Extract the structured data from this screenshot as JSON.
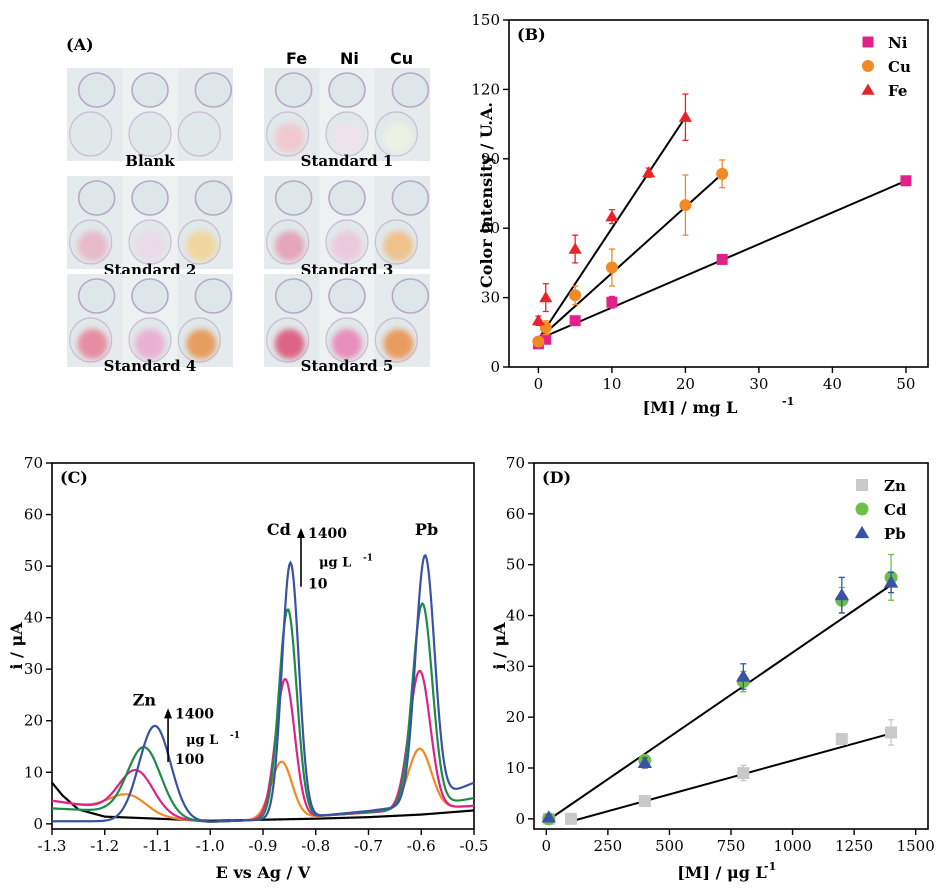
{
  "colors": {
    "fe": "#e8242b",
    "ni": "#e0218a",
    "cu": "#f08a24",
    "zn": "#c9c9c9",
    "cd": "#6cc04a",
    "pb": "#3a52a3",
    "curve_black": "#000000",
    "curve_orange": "#f08a24",
    "curve_magenta": "#e0218a",
    "curve_green": "#1e8a4a",
    "curve_blue": "#3a52a3"
  },
  "panel_a": {
    "label": "(A)",
    "headers": [
      "Fe",
      "Ni",
      "Cu"
    ],
    "photos": [
      {
        "label": "Blank",
        "spot_colors": [
          "#ffffff",
          "#ffffff",
          "#ffffff"
        ]
      },
      {
        "label": "Standard 1",
        "spot_colors": [
          "#f2c7cf",
          "#f0e2ee",
          "#eef2e4"
        ]
      },
      {
        "label": "Standard 2",
        "spot_colors": [
          "#e8b7c8",
          "#eadbe8",
          "#f2d59a"
        ]
      },
      {
        "label": "Standard 3",
        "spot_colors": [
          "#e4a3b8",
          "#ecc8dc",
          "#f0c088"
        ]
      },
      {
        "label": "Standard 4",
        "spot_colors": [
          "#e8889f",
          "#ebaed0",
          "#e69a5a"
        ]
      },
      {
        "label": "Standard 5",
        "spot_colors": [
          "#dc5f80",
          "#e88ab8",
          "#ea9658"
        ]
      }
    ]
  },
  "chart_data": [
    {
      "panel": "(B)",
      "type": "scatter",
      "xlabel": "[M] / mg L",
      "xlabel_sup": "-1",
      "ylabel": "Color intensity / U.A.",
      "xlim": [
        -4,
        53
      ],
      "ylim": [
        0,
        150
      ],
      "xticks": [
        0,
        10,
        20,
        30,
        40,
        50
      ],
      "yticks": [
        0,
        30,
        60,
        90,
        120,
        150
      ],
      "legend_position": "top-right",
      "series": [
        {
          "name": "Ni",
          "marker": "square",
          "color": "#e0218a",
          "x": [
            0,
            1,
            5,
            10,
            25,
            50
          ],
          "y": [
            10,
            12,
            20,
            28,
            46.5,
            80.5
          ],
          "err": [
            1,
            1,
            1,
            2.5,
            1,
            1.5
          ],
          "fit": [
            [
              0,
              12
            ],
            [
              50,
              80.5
            ]
          ]
        },
        {
          "name": "Cu",
          "marker": "circle",
          "color": "#f08a24",
          "x": [
            0,
            1,
            5,
            10,
            20,
            25
          ],
          "y": [
            11,
            17,
            31,
            43,
            70,
            83.5
          ],
          "err": [
            2,
            3,
            4,
            8,
            13,
            6
          ],
          "fit": [
            [
              0,
              12
            ],
            [
              25,
              83.5
            ]
          ]
        },
        {
          "name": "Fe",
          "marker": "triangle",
          "color": "#e8242b",
          "x": [
            0,
            1,
            5,
            10,
            15,
            20
          ],
          "y": [
            20,
            30,
            51,
            65,
            84,
            108
          ],
          "err": [
            2,
            6,
            6,
            3,
            2,
            10
          ],
          "fit": [
            [
              0,
              12
            ],
            [
              20,
              108
            ]
          ]
        }
      ]
    },
    {
      "panel": "(C)",
      "type": "line",
      "xlabel": "E vs Ag / V",
      "ylabel": "i / μA",
      "xlim": [
        -1.3,
        -0.5
      ],
      "ylim": [
        -1,
        70
      ],
      "xticks": [
        -1.3,
        -1.2,
        -1.1,
        -1.0,
        -0.9,
        -0.8,
        -0.7,
        -0.6,
        -0.5
      ],
      "xtick_labels": [
        "-1.3",
        "-1.2",
        "-1.1",
        "-1.0",
        "-0.9",
        "-0.8",
        "-0.7",
        "-0.6",
        "-0.5"
      ],
      "yticks": [
        0,
        10,
        20,
        30,
        40,
        50,
        60,
        70
      ],
      "annotations": [
        {
          "text": "Zn",
          "x": -1.125,
          "y": 23
        },
        {
          "text": "Cd",
          "x": -0.87,
          "y": 56
        },
        {
          "text": "Pb",
          "x": -0.59,
          "y": 56
        }
      ],
      "arrows": [
        {
          "x": -1.08,
          "y_from": 12,
          "y_to": 22,
          "top": "1400",
          "unit": "μg L",
          "unit_sup": "-1",
          "bottom": "100"
        },
        {
          "x": -0.828,
          "y_from": 46,
          "y_to": 57,
          "top": "1400",
          "unit": "μg L",
          "unit_sup": "-1",
          "bottom": "10"
        }
      ],
      "curves": [
        {
          "color": "#000000",
          "base": [
            [
              -1.3,
              8
            ],
            [
              -1.28,
              5.5
            ],
            [
              -1.25,
              2.8
            ],
            [
              -1.2,
              1.4
            ],
            [
              -1.1,
              1.0
            ],
            [
              -1.0,
              0.6
            ],
            [
              -0.9,
              0.8
            ],
            [
              -0.8,
              1.0
            ],
            [
              -0.7,
              1.3
            ],
            [
              -0.6,
              1.8
            ],
            [
              -0.5,
              2.6
            ]
          ],
          "peaks": []
        },
        {
          "color": "#f08a24",
          "base": [
            [
              -1.3,
              4.5
            ],
            [
              -1.2,
              3.0
            ],
            [
              -1.1,
              1.2
            ],
            [
              -1.0,
              0.4
            ],
            [
              -0.9,
              0.8
            ],
            [
              -0.8,
              1.5
            ],
            [
              -0.7,
              2.2
            ],
            [
              -0.6,
              2.8
            ],
            [
              -0.5,
              3.5
            ]
          ],
          "peaks": [
            [
              -1.155,
              3.5,
              0.035
            ],
            [
              -0.865,
              11,
              0.02
            ],
            [
              -0.603,
              11.8,
              0.022
            ]
          ]
        },
        {
          "color": "#e0218a",
          "base": [
            [
              -1.3,
              4.5
            ],
            [
              -1.2,
              3.0
            ],
            [
              -1.1,
              1.2
            ],
            [
              -1.0,
              0.4
            ],
            [
              -0.9,
              0.8
            ],
            [
              -0.8,
              1.5
            ],
            [
              -0.7,
              2.2
            ],
            [
              -0.6,
              2.9
            ],
            [
              -0.5,
              3.5
            ]
          ],
          "peaks": [
            [
              -1.14,
              8.5,
              0.033
            ],
            [
              -0.858,
              27,
              0.018
            ],
            [
              -0.603,
              26.8,
              0.02
            ]
          ]
        },
        {
          "color": "#1e8a4a",
          "base": [
            [
              -1.3,
              3.0
            ],
            [
              -1.2,
              2.5
            ],
            [
              -1.1,
              1.0
            ],
            [
              -1.0,
              0.4
            ],
            [
              -0.9,
              0.8
            ],
            [
              -0.8,
              1.5
            ],
            [
              -0.7,
              2.3
            ],
            [
              -0.6,
              3.2
            ],
            [
              -0.5,
              5.0
            ]
          ],
          "peaks": [
            [
              -1.125,
              13.5,
              0.032
            ],
            [
              -0.853,
              40.5,
              0.017
            ],
            [
              -0.598,
              39.5,
              0.019
            ]
          ]
        },
        {
          "color": "#3a52a3",
          "base": [
            [
              -1.3,
              0.5
            ],
            [
              -1.2,
              0.5
            ],
            [
              -1.1,
              0.5
            ],
            [
              -1.0,
              0.4
            ],
            [
              -0.9,
              0.8
            ],
            [
              -0.8,
              1.5
            ],
            [
              -0.7,
              2.5
            ],
            [
              -0.6,
              3.8
            ],
            [
              -0.5,
              8.0
            ]
          ],
          "peaks": [
            [
              -1.105,
              18.5,
              0.03
            ],
            [
              -0.848,
              49.5,
              0.016
            ],
            [
              -0.593,
              48,
              0.018
            ]
          ]
        }
      ]
    },
    {
      "panel": "(D)",
      "type": "scatter",
      "xlabel": "[M] / μg L",
      "xlabel_sup": "-1",
      "ylabel": "i / μA",
      "xlim": [
        -50,
        1550
      ],
      "ylim": [
        -2,
        70
      ],
      "xticks": [
        0,
        250,
        500,
        750,
        1000,
        1250,
        1500
      ],
      "yticks": [
        0,
        10,
        20,
        30,
        40,
        50,
        60,
        70
      ],
      "legend_position": "top-right",
      "series": [
        {
          "name": "Zn",
          "marker": "square",
          "color": "#c9c9c9",
          "x": [
            10,
            100,
            400,
            800,
            1200,
            1400
          ],
          "y": [
            0,
            0,
            3.5,
            9,
            15.7,
            17
          ],
          "err": [
            0.3,
            0.3,
            0.5,
            1.5,
            0.8,
            2.5
          ],
          "fit": [
            [
              100,
              -0.5
            ],
            [
              1400,
              16.8
            ]
          ]
        },
        {
          "name": "Cd",
          "marker": "circle",
          "color": "#6cc04a",
          "x": [
            10,
            400,
            800,
            1200,
            1400
          ],
          "y": [
            0,
            11.5,
            27,
            43,
            47.5
          ],
          "err": [
            0.5,
            1,
            2,
            2.5,
            4.5
          ],
          "fit": [
            [
              0,
              -0.5
            ],
            [
              1400,
              46
            ]
          ]
        },
        {
          "name": "Pb",
          "marker": "triangle",
          "color": "#3a52a3",
          "x": [
            10,
            400,
            800,
            1200,
            1400
          ],
          "y": [
            0.3,
            11,
            28,
            44,
            46.5
          ],
          "err": [
            0.5,
            1,
            2.5,
            3.5,
            2
          ],
          "fit": null
        }
      ]
    }
  ]
}
